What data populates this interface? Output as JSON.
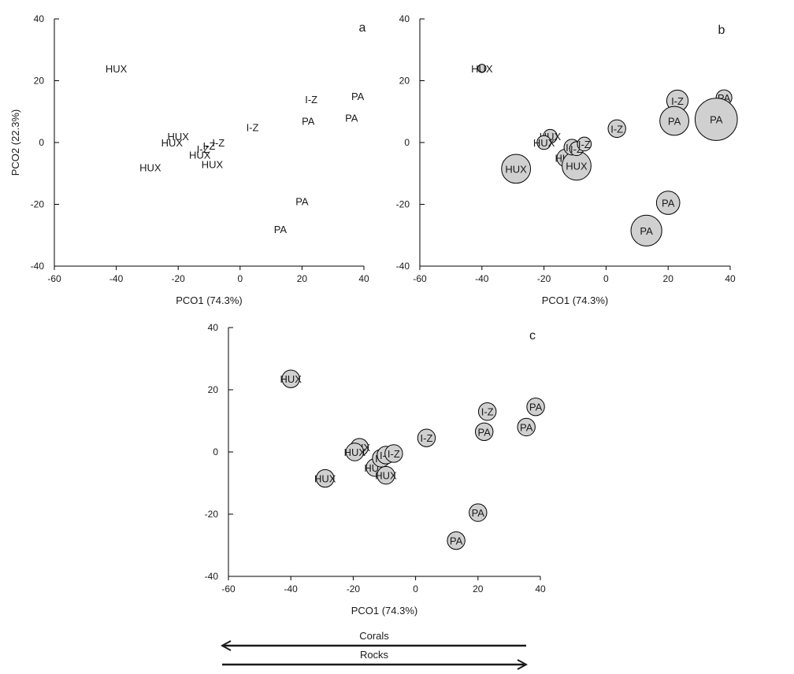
{
  "chart_data": [
    {
      "type": "scatter",
      "panel": "a",
      "xlabel": "PCO1 (74.3%)",
      "ylabel": "PCO2 (22.3%)",
      "xlim": [
        -60,
        40
      ],
      "ylim": [
        -40,
        40
      ],
      "xticks": [
        -60,
        -40,
        -20,
        0,
        20,
        40
      ],
      "yticks": [
        -40,
        -20,
        0,
        20,
        40
      ],
      "bubbles": false,
      "points": [
        {
          "label": "HUX",
          "x": -40,
          "y": 24,
          "size": 0
        },
        {
          "label": "HUX",
          "x": -20,
          "y": 2,
          "size": 0
        },
        {
          "label": "HUX",
          "x": -22,
          "y": 0,
          "size": 0
        },
        {
          "label": "HUX",
          "x": -29,
          "y": -8,
          "size": 0
        },
        {
          "label": "HUX",
          "x": -13,
          "y": -4,
          "size": 0
        },
        {
          "label": "HUX",
          "x": -9,
          "y": -7,
          "size": 0
        },
        {
          "label": "I-Z",
          "x": -10,
          "y": -1,
          "size": 0
        },
        {
          "label": "I-Z",
          "x": -12,
          "y": -2,
          "size": 0
        },
        {
          "label": "I-Z",
          "x": -7,
          "y": 0,
          "size": 0
        },
        {
          "label": "I-Z",
          "x": 4,
          "y": 5,
          "size": 0
        },
        {
          "label": "I-Z",
          "x": 23,
          "y": 14,
          "size": 0
        },
        {
          "label": "PA",
          "x": 22,
          "y": 7,
          "size": 0
        },
        {
          "label": "PA",
          "x": 38,
          "y": 15,
          "size": 0
        },
        {
          "label": "PA",
          "x": 36,
          "y": 8,
          "size": 0
        },
        {
          "label": "PA",
          "x": 20,
          "y": -19,
          "size": 0
        },
        {
          "label": "PA",
          "x": 13,
          "y": -28,
          "size": 0
        }
      ]
    },
    {
      "type": "scatter",
      "panel": "b",
      "xlabel": "PCO1 (74.3%)",
      "ylabel": "",
      "xlim": [
        -60,
        40
      ],
      "ylim": [
        -40,
        40
      ],
      "xticks": [
        -60,
        -40,
        -20,
        0,
        20,
        40
      ],
      "yticks": [
        -40,
        -20,
        0,
        20,
        40
      ],
      "bubbles": true,
      "points": [
        {
          "label": "HUX",
          "x": -40,
          "y": 24,
          "size": 0.05
        },
        {
          "label": "HUX",
          "x": -18,
          "y": 2,
          "size": 0.2
        },
        {
          "label": "HUX",
          "x": -20,
          "y": 0,
          "size": 0.2
        },
        {
          "label": "HUX",
          "x": -29,
          "y": -8.5,
          "size": 0.6
        },
        {
          "label": "HUX",
          "x": -13,
          "y": -5,
          "size": 0.3
        },
        {
          "label": "HUX",
          "x": -9.5,
          "y": -7.5,
          "size": 0.6
        },
        {
          "label": "I-Z",
          "x": -11,
          "y": -1.5,
          "size": 0.25
        },
        {
          "label": "I-Z",
          "x": -9.5,
          "y": -2,
          "size": 0.2
        },
        {
          "label": "I-Z",
          "x": -7,
          "y": -0.5,
          "size": 0.2
        },
        {
          "label": "I-Z",
          "x": 3.5,
          "y": 4.5,
          "size": 0.3
        },
        {
          "label": "I-Z",
          "x": 23,
          "y": 13.5,
          "size": 0.4
        },
        {
          "label": "PA",
          "x": 22,
          "y": 7,
          "size": 0.6
        },
        {
          "label": "PA",
          "x": 38,
          "y": 14.5,
          "size": 0.25
        },
        {
          "label": "PA",
          "x": 35.5,
          "y": 7.5,
          "size": 0.95
        },
        {
          "label": "PA",
          "x": 20,
          "y": -19.5,
          "size": 0.45
        },
        {
          "label": "PA",
          "x": 13,
          "y": -28.5,
          "size": 0.65
        }
      ]
    },
    {
      "type": "scatter",
      "panel": "c",
      "xlabel": "PCO1 (74.3%)",
      "ylabel": "",
      "xlim": [
        -60,
        40
      ],
      "ylim": [
        -40,
        40
      ],
      "xticks": [
        -60,
        -40,
        -20,
        0,
        20,
        40
      ],
      "yticks": [
        -40,
        -20,
        0,
        20,
        40
      ],
      "bubbles": true,
      "points": [
        {
          "label": "HUX",
          "x": -40,
          "y": 23.5,
          "size": 0.3
        },
        {
          "label": "HUX",
          "x": -18,
          "y": 1.5,
          "size": 0.3
        },
        {
          "label": "HUX",
          "x": -19.5,
          "y": 0,
          "size": 0.3
        },
        {
          "label": "HUX",
          "x": -29,
          "y": -8.5,
          "size": 0.3
        },
        {
          "label": "HUX",
          "x": -13,
          "y": -5,
          "size": 0.3
        },
        {
          "label": "HUX",
          "x": -9.5,
          "y": -7.5,
          "size": 0.3
        },
        {
          "label": "I-Z",
          "x": -11,
          "y": -2,
          "size": 0.3
        },
        {
          "label": "I-Z",
          "x": -9.5,
          "y": -1,
          "size": 0.3
        },
        {
          "label": "I-Z",
          "x": -7,
          "y": -0.5,
          "size": 0.3
        },
        {
          "label": "I-Z",
          "x": 3.5,
          "y": 4.5,
          "size": 0.3
        },
        {
          "label": "I-Z",
          "x": 23,
          "y": 13,
          "size": 0.3
        },
        {
          "label": "PA",
          "x": 22,
          "y": 6.5,
          "size": 0.3
        },
        {
          "label": "PA",
          "x": 38.5,
          "y": 14.5,
          "size": 0.3
        },
        {
          "label": "PA",
          "x": 35.5,
          "y": 8,
          "size": 0.3
        },
        {
          "label": "PA",
          "x": 20,
          "y": -19.5,
          "size": 0.3
        },
        {
          "label": "PA",
          "x": 13,
          "y": -28.5,
          "size": 0.3
        }
      ]
    }
  ],
  "gradient_arrows": [
    {
      "label": "Corals",
      "direction": "left"
    },
    {
      "label": "Rocks",
      "direction": "right"
    }
  ]
}
